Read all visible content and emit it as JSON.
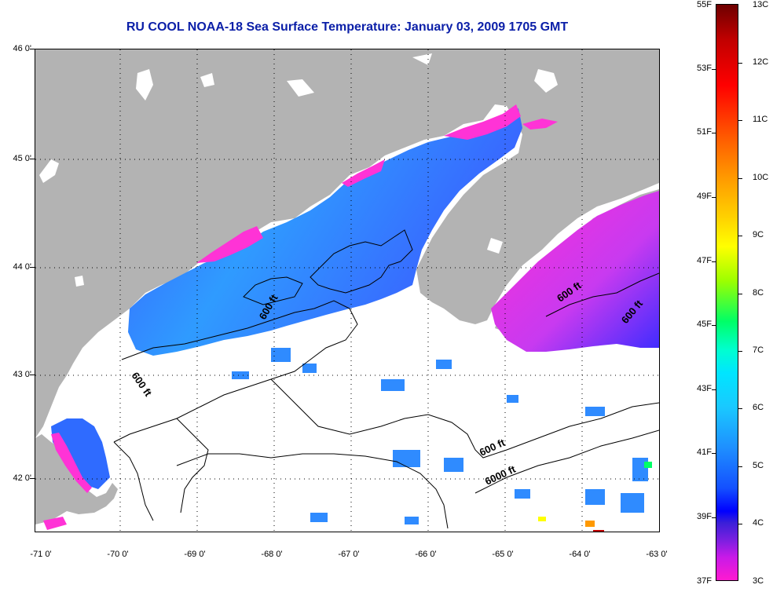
{
  "title": "RU COOL  NOAA-18  Sea Surface Temperature:  January 03, 2009 1705 GMT",
  "lat_labels": [
    "46 0'",
    "45 0'",
    "44 0'",
    "43 0'",
    "42 0'"
  ],
  "lon_labels": [
    "-71 0'",
    "-70 0'",
    "-69 0'",
    "-68 0'",
    "-67 0'",
    "-66 0'",
    "-65 0'",
    "-64 0'",
    "-63 0'"
  ],
  "contour_labels": [
    "600 ft",
    "600 ft",
    "600 ft",
    "600 ft",
    "6000 ft",
    "600 ft"
  ],
  "colorbar": {
    "fahrenheit": [
      "55F",
      "53F",
      "51F",
      "49F",
      "47F",
      "45F",
      "43F",
      "41F",
      "39F",
      "37F"
    ],
    "celsius": [
      "13C",
      "12C",
      "11C",
      "10C",
      "9C",
      "8C",
      "7C",
      "6C",
      "5C",
      "4C",
      "3C"
    ]
  },
  "colors": {
    "land": "#b3b3b3",
    "title": "#0b1fa8",
    "cold_magenta": "#ff33d6",
    "blue_water": "#2f6bff"
  }
}
